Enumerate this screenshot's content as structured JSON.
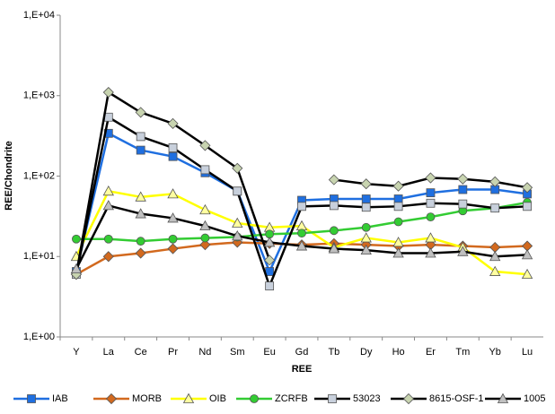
{
  "chart_data": {
    "type": "line",
    "log_y": true,
    "grid": false,
    "x_label": "REE",
    "y_label": "REE/Chondrite",
    "categories": [
      "Y",
      "La",
      "Ce",
      "Pr",
      "Nd",
      "Sm",
      "Eu",
      "Gd",
      "Tb",
      "Dy",
      "Ho",
      "Er",
      "Tm",
      "Yb",
      "Lu"
    ],
    "ylim": [
      1,
      10000
    ],
    "yticks": [
      {
        "value": 1,
        "label": "1,E+00"
      },
      {
        "value": 10,
        "label": "1,E+01"
      },
      {
        "value": 100,
        "label": "1,E+02"
      },
      {
        "value": 1000,
        "label": "1,E+03"
      },
      {
        "value": 10000,
        "label": "1,E+04"
      }
    ],
    "series": [
      {
        "name": "IAB",
        "color": "#1f6fe0",
        "marker": "square",
        "marker_fill": "#1f6fe0",
        "values": [
          6.5,
          340,
          210,
          175,
          110,
          65,
          6.5,
          50,
          52,
          52,
          52,
          62,
          68,
          68,
          60
        ]
      },
      {
        "name": "MORB",
        "color": "#d2691e",
        "marker": "diamond",
        "marker_fill": "#d2691e",
        "values": [
          6,
          10,
          11,
          12.5,
          14,
          15,
          14.5,
          14,
          14.5,
          14,
          13.5,
          14,
          13.5,
          13,
          13.5
        ]
      },
      {
        "name": "OIB",
        "color": "#ffff00",
        "marker": "triangle",
        "marker_fill": "#ffffa0",
        "values": [
          10,
          65,
          55,
          60,
          38,
          26,
          23,
          24,
          13,
          17,
          15,
          17,
          13,
          6.5,
          6
        ]
      },
      {
        "name": "ZCRFB",
        "color": "#33cc33",
        "marker": "circle",
        "marker_fill": "#33cc33",
        "values": [
          16.5,
          16.5,
          15.5,
          16.5,
          17,
          17.5,
          19,
          19.5,
          21,
          23,
          27,
          31,
          37,
          40,
          47
        ]
      },
      {
        "name": "53023",
        "color": "#000000",
        "marker": "square",
        "marker_fill": "#c8d0dc",
        "values": [
          6,
          540,
          310,
          225,
          120,
          65,
          4.3,
          42,
          43,
          41,
          42,
          46,
          45,
          40,
          42
        ]
      },
      {
        "name": "8615-OSF-1",
        "color": "#000000",
        "marker": "diamond",
        "marker_fill": "#c8d4b0",
        "values": [
          6,
          1100,
          620,
          450,
          240,
          125,
          9,
          null,
          90,
          80,
          75,
          95,
          92,
          85,
          72
        ]
      },
      {
        "name": "1005",
        "color": "#000000",
        "marker": "triangle",
        "marker_fill": "#c0c0c0",
        "values": [
          7,
          43,
          34,
          30,
          24,
          18,
          15,
          13.5,
          12.5,
          12,
          11,
          11,
          11.5,
          10,
          10.5
        ]
      }
    ]
  }
}
